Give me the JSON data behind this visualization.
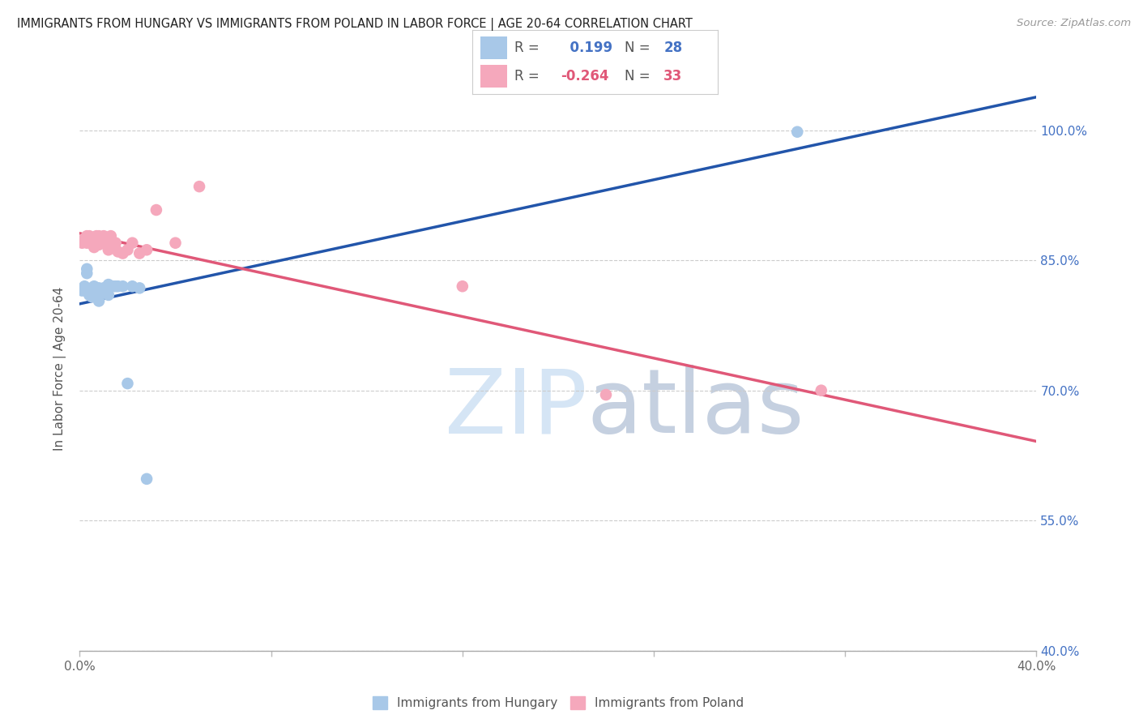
{
  "title": "IMMIGRANTS FROM HUNGARY VS IMMIGRANTS FROM POLAND IN LABOR FORCE | AGE 20-64 CORRELATION CHART",
  "source": "Source: ZipAtlas.com",
  "ylabel": "In Labor Force | Age 20-64",
  "xlim": [
    0.0,
    0.4
  ],
  "ylim": [
    0.4,
    1.05
  ],
  "yticks": [
    0.4,
    0.55,
    0.7,
    0.85,
    1.0
  ],
  "ytick_labels": [
    "40.0%",
    "55.0%",
    "70.0%",
    "85.0%",
    "100.0%"
  ],
  "xticks": [
    0.0,
    0.08,
    0.16,
    0.24,
    0.32,
    0.4
  ],
  "xtick_labels": [
    "0.0%",
    "",
    "",
    "",
    "",
    "40.0%"
  ],
  "hungary_R": 0.199,
  "hungary_N": 28,
  "poland_R": -0.264,
  "poland_N": 33,
  "hungary_color": "#a8c8e8",
  "poland_color": "#f5a8bc",
  "hungary_line_color": "#2255aa",
  "poland_line_color": "#e05878",
  "background_color": "#ffffff",
  "hungary_x": [
    0.001,
    0.002,
    0.003,
    0.003,
    0.004,
    0.005,
    0.005,
    0.006,
    0.006,
    0.007,
    0.007,
    0.008,
    0.008,
    0.009,
    0.01,
    0.011,
    0.012,
    0.012,
    0.013,
    0.014,
    0.015,
    0.016,
    0.018,
    0.02,
    0.022,
    0.025,
    0.028,
    0.3
  ],
  "hungary_y": [
    0.815,
    0.82,
    0.835,
    0.84,
    0.81,
    0.808,
    0.818,
    0.812,
    0.82,
    0.81,
    0.818,
    0.803,
    0.818,
    0.812,
    0.818,
    0.815,
    0.81,
    0.822,
    0.82,
    0.82,
    0.82,
    0.82,
    0.82,
    0.708,
    0.82,
    0.818,
    0.598,
    0.998
  ],
  "poland_x": [
    0.001,
    0.002,
    0.003,
    0.003,
    0.004,
    0.004,
    0.005,
    0.005,
    0.006,
    0.007,
    0.007,
    0.008,
    0.008,
    0.009,
    0.01,
    0.01,
    0.011,
    0.012,
    0.013,
    0.014,
    0.015,
    0.016,
    0.018,
    0.02,
    0.022,
    0.025,
    0.028,
    0.032,
    0.04,
    0.05,
    0.16,
    0.22,
    0.31
  ],
  "poland_y": [
    0.87,
    0.875,
    0.87,
    0.878,
    0.872,
    0.878,
    0.87,
    0.875,
    0.865,
    0.872,
    0.878,
    0.868,
    0.878,
    0.872,
    0.87,
    0.878,
    0.87,
    0.862,
    0.878,
    0.87,
    0.87,
    0.86,
    0.858,
    0.862,
    0.87,
    0.858,
    0.862,
    0.908,
    0.87,
    0.935,
    0.82,
    0.695,
    0.7
  ]
}
